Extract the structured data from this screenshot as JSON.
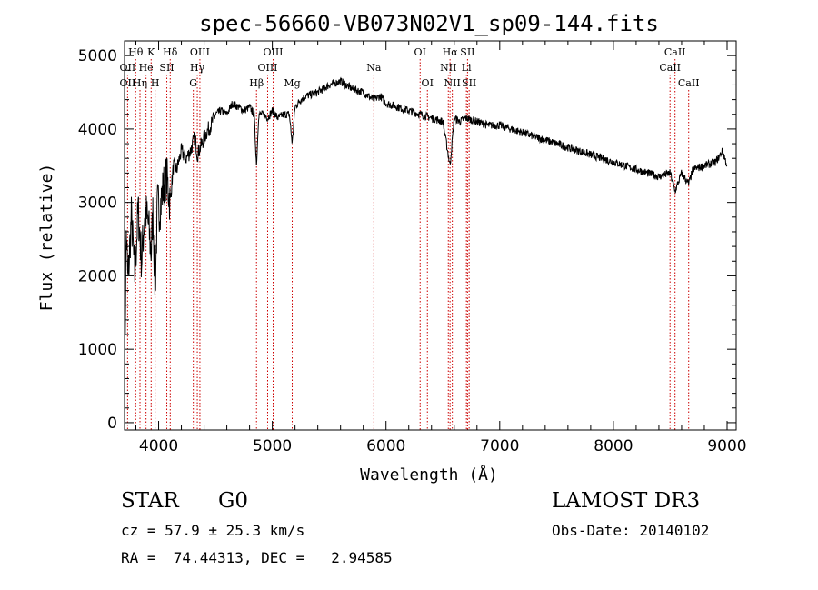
{
  "chart_data": {
    "type": "line",
    "title": "spec-56660-VB073N02V1_sp09-144.fits",
    "xlabel": "Wavelength (Å)",
    "ylabel": "Flux (relative)",
    "xlim": [
      3700,
      9080
    ],
    "ylim": [
      -100,
      5200
    ],
    "x_ticks": [
      4000,
      5000,
      6000,
      7000,
      8000,
      9000
    ],
    "y_ticks": [
      0,
      1000,
      2000,
      3000,
      4000,
      5000
    ],
    "line_color": "#000000",
    "marker_color": "#cc0000",
    "spectrum": {
      "x": [
        3700,
        3715,
        3730,
        3760,
        3790,
        3820,
        3850,
        3880,
        3910,
        3935,
        3950,
        3969,
        3990,
        4010,
        4040,
        4070,
        4101,
        4130,
        4160,
        4200,
        4240,
        4280,
        4320,
        4340,
        4380,
        4420,
        4460,
        4500,
        4550,
        4600,
        4650,
        4700,
        4750,
        4800,
        4840,
        4861,
        4880,
        4920,
        4960,
        5000,
        5050,
        5100,
        5150,
        5175,
        5200,
        5250,
        5300,
        5400,
        5500,
        5600,
        5700,
        5800,
        5893,
        5950,
        6000,
        6100,
        6200,
        6300,
        6400,
        6500,
        6563,
        6600,
        6650,
        6700,
        6800,
        6900,
        7000,
        7200,
        7400,
        7600,
        7800,
        8000,
        8200,
        8400,
        8500,
        8542,
        8600,
        8662,
        8700,
        8800,
        8900,
        8960,
        9000
      ],
      "y": [
        500,
        2600,
        1900,
        2800,
        2000,
        2900,
        2200,
        2900,
        2700,
        2300,
        2900,
        1800,
        3000,
        2900,
        3200,
        3350,
        3000,
        3500,
        3450,
        3700,
        3600,
        3700,
        3900,
        3650,
        3800,
        3950,
        4050,
        4200,
        4250,
        4200,
        4350,
        4300,
        4250,
        4300,
        4200,
        3500,
        4200,
        4200,
        4150,
        4250,
        4150,
        4200,
        4200,
        3800,
        4300,
        4400,
        4450,
        4500,
        4600,
        4650,
        4550,
        4500,
        4400,
        4450,
        4350,
        4300,
        4250,
        4200,
        4150,
        4100,
        3500,
        4150,
        4100,
        4150,
        4100,
        4050,
        4050,
        3950,
        3850,
        3750,
        3650,
        3550,
        3450,
        3350,
        3400,
        3150,
        3400,
        3250,
        3450,
        3500,
        3550,
        3700,
        3500
      ]
    },
    "lines": [
      {
        "label": "Hθ",
        "x": 3798,
        "row": 1
      },
      {
        "label": "OII",
        "x": 3727,
        "row": 2
      },
      {
        "label": "OII",
        "x": 3727,
        "row": 3
      },
      {
        "label": "Hη",
        "x": 3836,
        "row": 3
      },
      {
        "label": "He",
        "x": 3889,
        "row": 2
      },
      {
        "label": "K",
        "x": 3934,
        "row": 1
      },
      {
        "label": "H",
        "x": 3969,
        "row": 3
      },
      {
        "label": "SII",
        "x": 4072,
        "row": 2
      },
      {
        "label": "Hδ",
        "x": 4102,
        "row": 1
      },
      {
        "label": "OIII",
        "x": 4363,
        "row": 1
      },
      {
        "label": "Hγ",
        "x": 4340,
        "row": 2
      },
      {
        "label": "G",
        "x": 4305,
        "row": 3
      },
      {
        "label": "Hβ",
        "x": 4861,
        "row": 3
      },
      {
        "label": "OIII",
        "x": 4959,
        "row": 2
      },
      {
        "label": "OIII",
        "x": 5007,
        "row": 1
      },
      {
        "label": "Mg",
        "x": 5175,
        "row": 3
      },
      {
        "label": "Na",
        "x": 5893,
        "row": 2
      },
      {
        "label": "OI",
        "x": 6300,
        "row": 1
      },
      {
        "label": "OI",
        "x": 6364,
        "row": 3
      },
      {
        "label": "Hα",
        "x": 6563,
        "row": 1
      },
      {
        "label": "NII",
        "x": 6548,
        "row": 2
      },
      {
        "label": "NII",
        "x": 6583,
        "row": 3
      },
      {
        "label": "SII",
        "x": 6717,
        "row": 1
      },
      {
        "label": "Li",
        "x": 6707,
        "row": 2
      },
      {
        "label": "SII",
        "x": 6731,
        "row": 3
      },
      {
        "label": "CaII",
        "x": 8542,
        "row": 1
      },
      {
        "label": "CaII",
        "x": 8498,
        "row": 2
      },
      {
        "label": "CaII",
        "x": 8662,
        "row": 3
      }
    ]
  },
  "info": {
    "class_label": "STAR",
    "subclass": "G0",
    "survey": "LAMOST DR3",
    "cz_line": "cz = 57.9 ± 25.3 km/s",
    "obs_date_line": "Obs-Date: 20140102",
    "coords_line": "RA =  74.44313, DEC =   2.94585"
  }
}
